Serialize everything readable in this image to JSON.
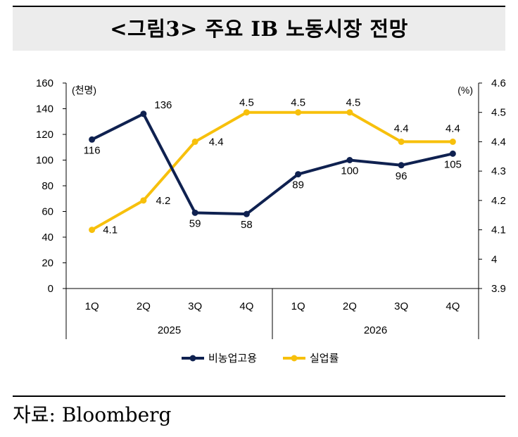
{
  "title": "<그림3> 주요 IB 노동시장 전망",
  "source": "자료: Bloomberg",
  "chart_data": {
    "type": "line",
    "categories": [
      "1Q",
      "2Q",
      "3Q",
      "4Q",
      "1Q",
      "2Q",
      "3Q",
      "4Q"
    ],
    "groups": [
      {
        "label": "2025",
        "span": 4
      },
      {
        "label": "2026",
        "span": 4
      }
    ],
    "y_left": {
      "unit": "(천명)",
      "ylim": [
        0,
        160
      ],
      "ticks": [
        "0",
        "20",
        "40",
        "60",
        "80",
        "100",
        "120",
        "140",
        "160"
      ]
    },
    "y_right": {
      "unit": "(%)",
      "ylim": [
        3.9,
        4.6
      ],
      "ticks": [
        "3.9",
        "4",
        "4.1",
        "4.2",
        "4.3",
        "4.4",
        "4.5",
        "4.6"
      ]
    },
    "series": [
      {
        "name": "비농업고용",
        "axis": "left",
        "color": "#0f2150",
        "values": [
          116,
          136,
          59,
          58,
          89,
          100,
          96,
          105
        ],
        "labels": [
          "116",
          "136",
          "59",
          "58",
          "89",
          "100",
          "96",
          "105"
        ]
      },
      {
        "name": "실업률",
        "axis": "right",
        "color": "#f7c00c",
        "values": [
          4.1,
          4.2,
          4.4,
          4.5,
          4.5,
          4.5,
          4.4,
          4.4
        ],
        "labels": [
          "4.1",
          "4.2",
          "4.4",
          "4.5",
          "4.5",
          "4.5",
          "4.4",
          "4.4"
        ]
      }
    ],
    "grid": false,
    "legend": "bottom"
  }
}
